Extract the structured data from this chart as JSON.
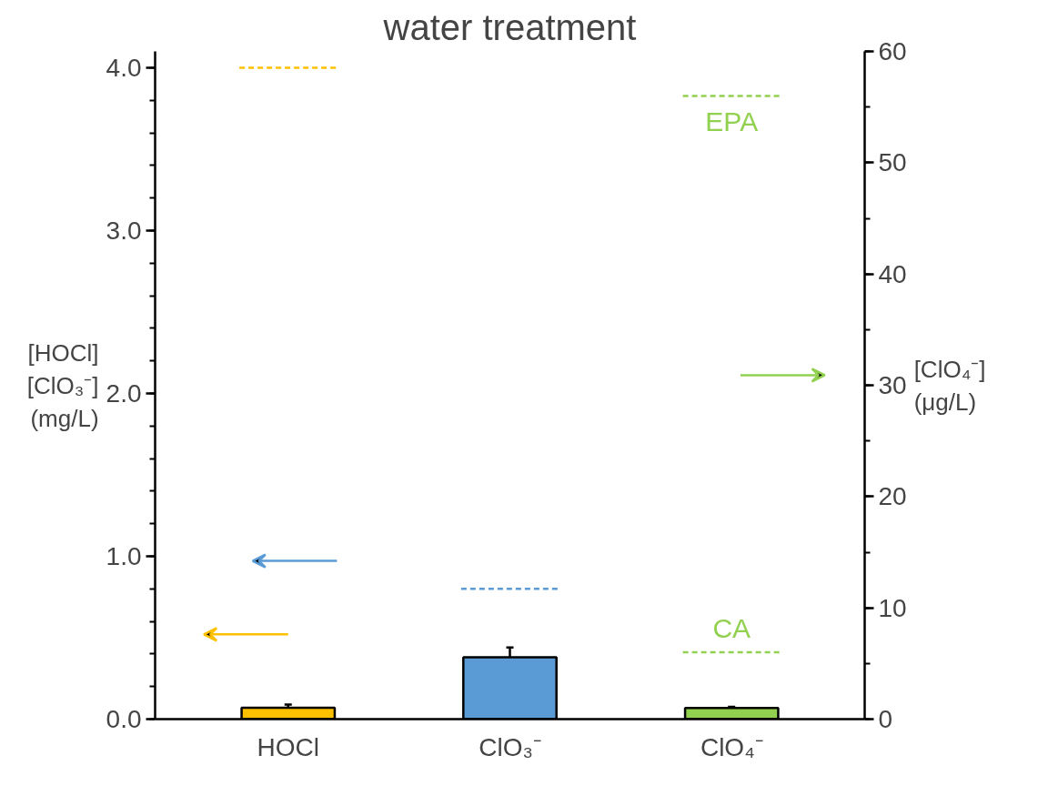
{
  "chart_data": {
    "type": "bar",
    "title": "water treatment",
    "ylabel": "[HOCl]\n[ClO₃⁻]\n(mg/L)",
    "y2label": "[ClO₄⁻]\n(μg/L)",
    "categories": [
      "HOCl",
      "ClO₃⁻",
      "ClO₄⁻"
    ],
    "series": [
      {
        "color": "#ffc000",
        "values": [
          0.07,
          null,
          null
        ],
        "errors": [
          0.02,
          null,
          null
        ]
      },
      {
        "color": "#5b9bd5",
        "values": [
          null,
          0.38,
          null
        ],
        "errors": [
          null,
          0.06,
          null
        ]
      },
      {
        "color": "#92d050",
        "values": [
          null,
          null,
          1.0
        ],
        "errors": [
          null,
          null,
          0.1
        ],
        "axis": "y2"
      }
    ],
    "ylim": [
      0,
      4.1
    ],
    "yticks": [
      {
        "value": 0,
        "label": "0.0"
      },
      {
        "value": 1,
        "label": "1.0"
      },
      {
        "value": 2,
        "label": "2.0"
      },
      {
        "value": 3,
        "label": "3.0"
      },
      {
        "value": 4,
        "label": "4.0"
      }
    ],
    "y2lim": [
      0,
      60
    ],
    "y2ticks": [
      0,
      10,
      20,
      30,
      40,
      50,
      60
    ],
    "ref_lines": [
      {
        "axis": "y",
        "value": 4.0,
        "color": "#ffc000",
        "line_style": "dashed"
      },
      {
        "axis": "y",
        "value": 0.8,
        "color": "#5b9bd5",
        "line_style": "dashed"
      },
      {
        "axis": "y2",
        "value": 56,
        "label": "EPA",
        "color": "#92d050",
        "line_style": "dashed"
      },
      {
        "axis": "y2",
        "value": 6,
        "label": "CA",
        "color": "#92d050",
        "line_style": "dashed"
      }
    ],
    "grid": false
  }
}
